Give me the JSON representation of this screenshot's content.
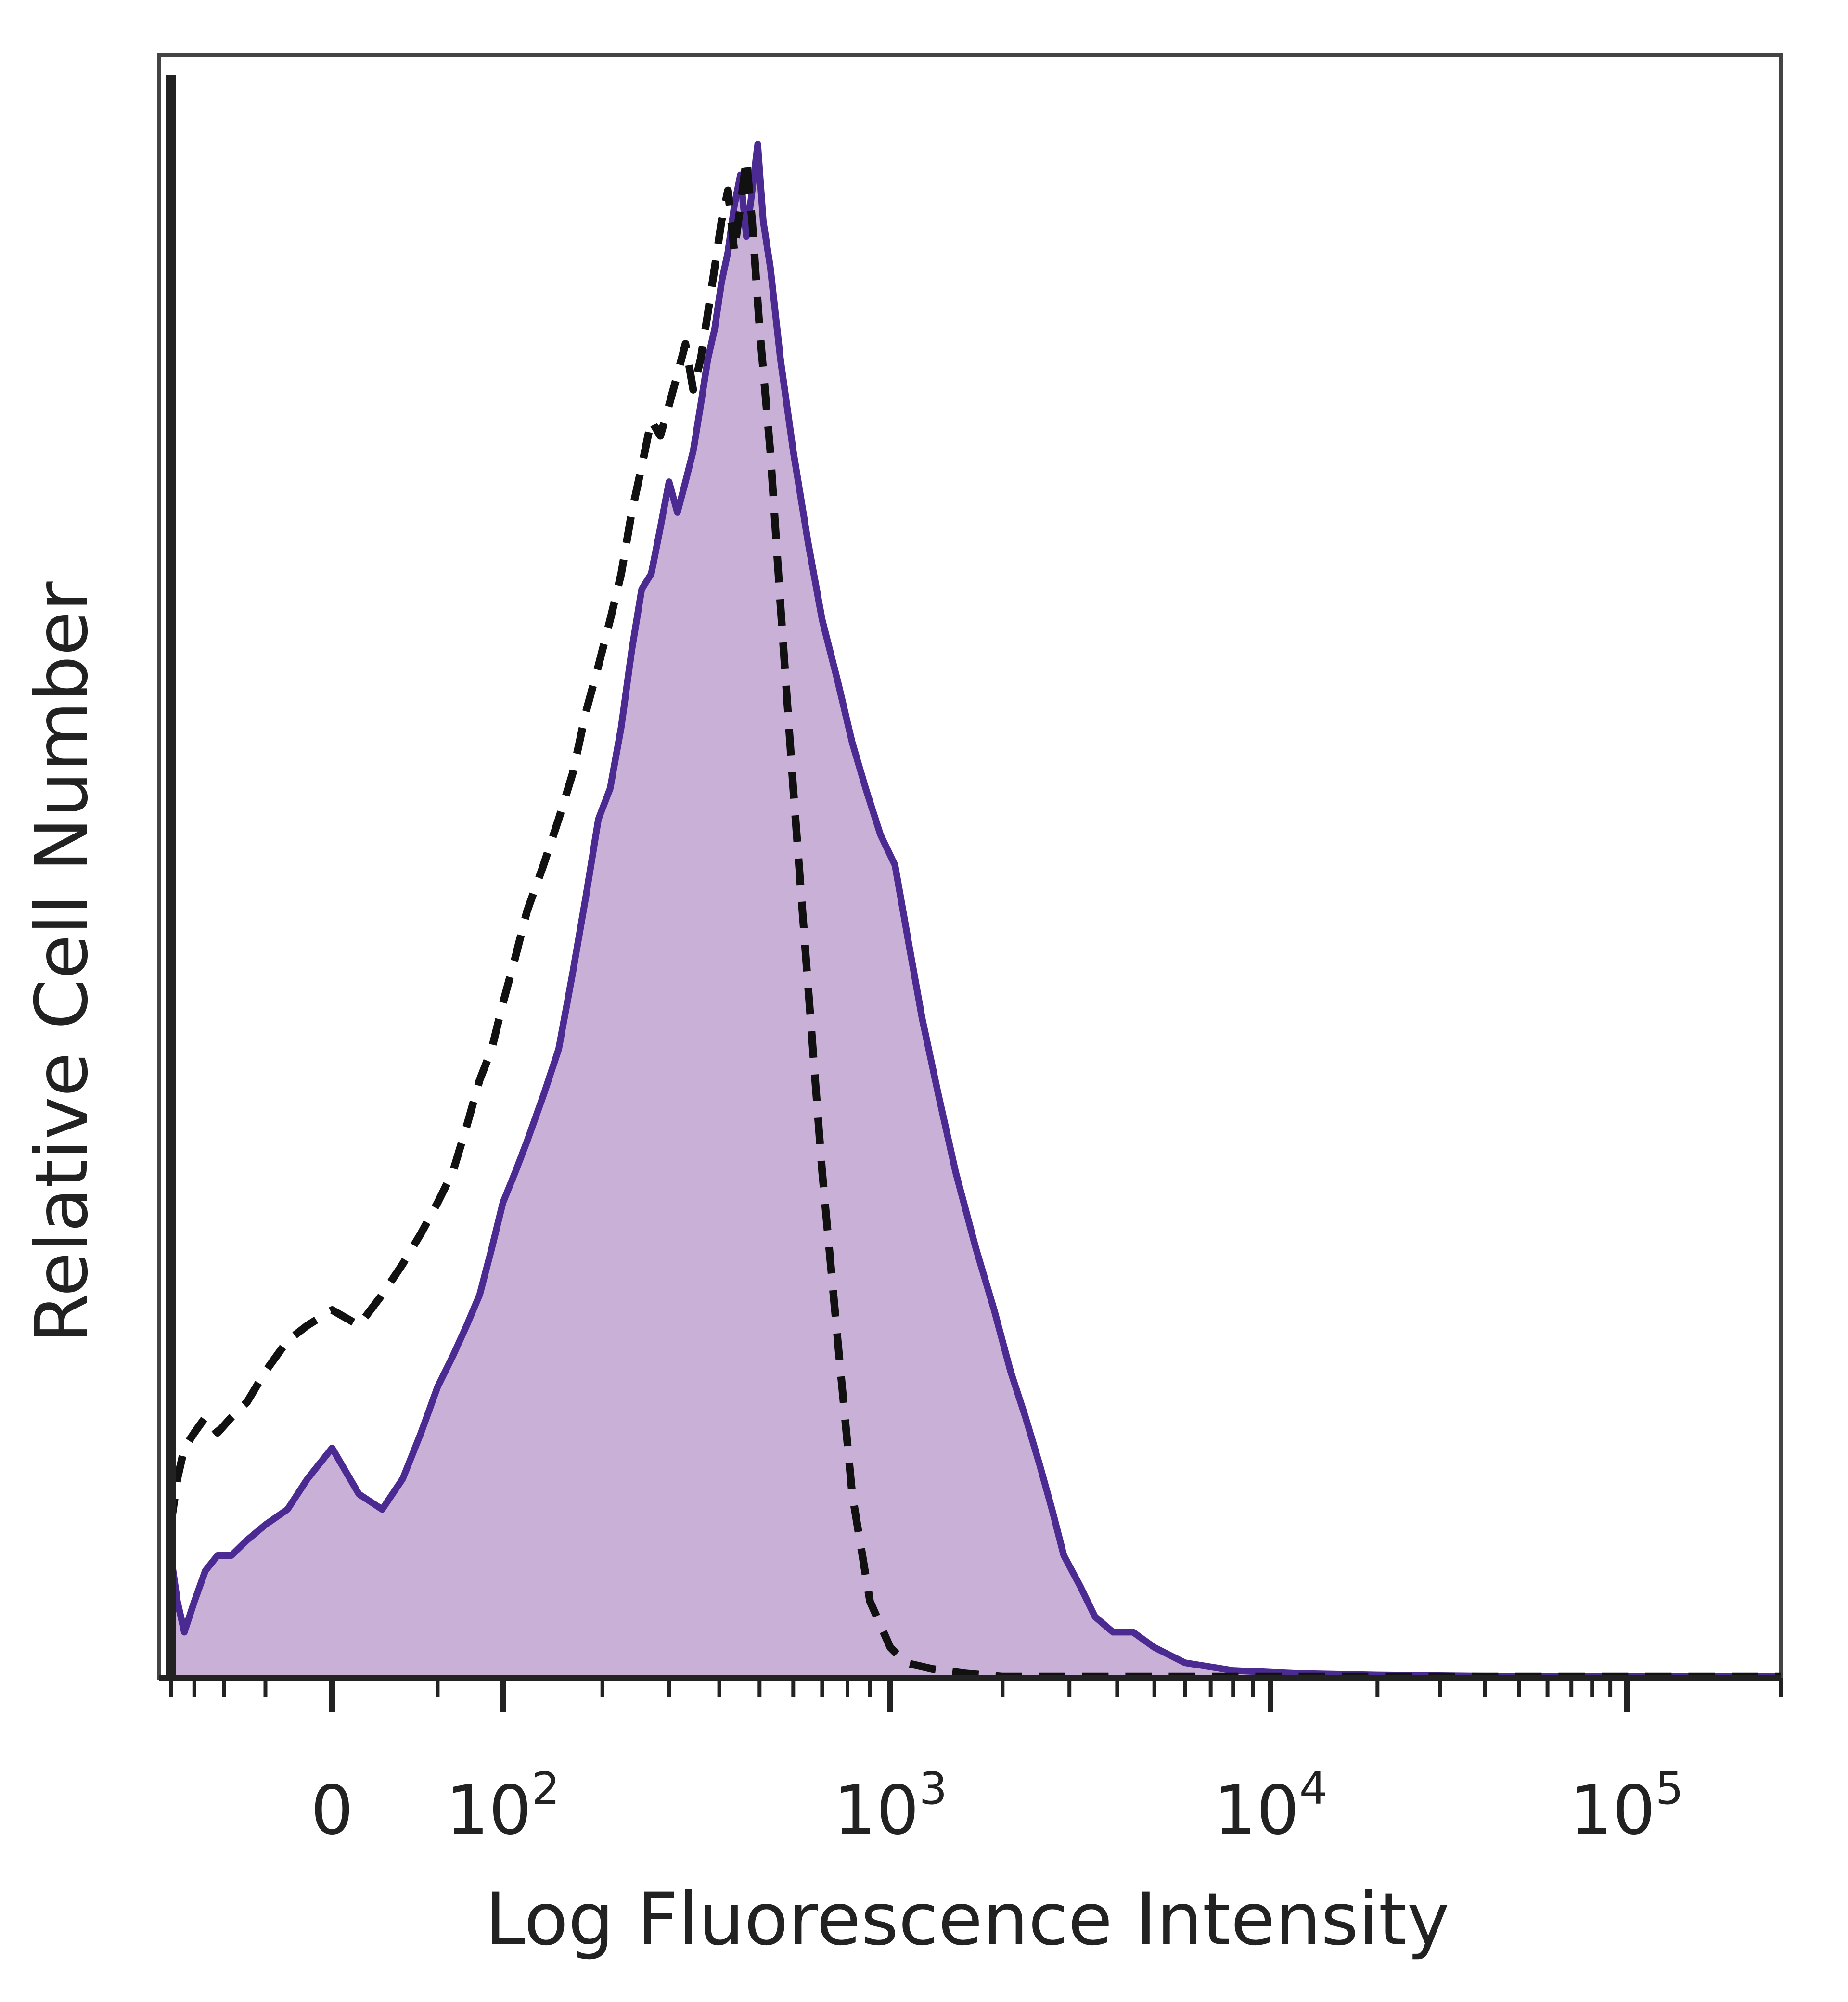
{
  "chart_data": {
    "type": "area",
    "xlabel": "Log Fluorescence Intensity",
    "ylabel": "Relative Cell Number",
    "x_scale": "biexponential (logicle)",
    "x_tick_labels": [
      {
        "base": "0",
        "exp": ""
      },
      {
        "base": "10",
        "exp": "2"
      },
      {
        "base": "10",
        "exp": "3"
      },
      {
        "base": "10",
        "exp": "4"
      },
      {
        "base": "10",
        "exp": "5"
      }
    ],
    "x_major_ticks": [
      0,
      100,
      1000,
      10000,
      100000
    ],
    "ylim": [
      0,
      100
    ],
    "grid": false,
    "legend": "none",
    "colors": {
      "filled_fill": "#c9b0d6",
      "filled_line": "#4b2a91",
      "dashed_line": "#111111",
      "axis": "#222222",
      "frame": "#444444"
    },
    "series": [
      {
        "style": "filled, solid purple outline",
        "x": [
          -200,
          -185,
          -170,
          -150,
          -130,
          -110,
          -90,
          -70,
          -50,
          -30,
          -15,
          0,
          10,
          20,
          30,
          40,
          50,
          60,
          70,
          80,
          90,
          100,
          110,
          120,
          135,
          150,
          165,
          180,
          195,
          210,
          225,
          240,
          255,
          270,
          285,
          300,
          315,
          330,
          345,
          360,
          375,
          390,
          405,
          420,
          435,
          450,
          465,
          480,
          495,
          510,
          530,
          560,
          600,
          650,
          700,
          760,
          820,
          880,
          950,
          1030,
          1120,
          1220,
          1350,
          1500,
          1700,
          1900,
          2100,
          2300,
          2500,
          2700,
          2900,
          3200,
          3500,
          3900,
          4400,
          5000,
          6000,
          8000,
          12000,
          20000,
          50000,
          100000,
          200000
        ],
        "y": [
          8,
          5,
          3,
          5,
          7,
          8,
          8,
          9,
          10,
          11,
          13,
          15,
          12,
          11,
          13,
          16,
          19,
          21,
          23,
          25,
          28,
          31,
          33,
          35,
          38,
          41,
          46,
          51,
          56,
          58,
          62,
          67,
          71,
          72,
          75,
          78,
          76,
          78,
          80,
          83,
          86,
          88,
          91,
          93,
          96,
          98,
          94,
          97,
          100,
          95,
          92,
          86,
          80,
          74,
          69,
          65,
          61,
          58,
          55,
          53,
          48,
          43,
          38,
          33,
          28,
          24,
          20,
          17,
          14,
          11,
          8,
          6,
          4,
          3,
          3,
          2,
          1,
          0.5,
          0.3,
          0.2,
          0.1,
          0.1,
          0.1
        ]
      },
      {
        "style": "dashed black outline",
        "x": [
          -200,
          -185,
          -170,
          -150,
          -130,
          -110,
          -90,
          -70,
          -50,
          -30,
          -15,
          0,
          10,
          20,
          30,
          40,
          50,
          60,
          70,
          80,
          90,
          100,
          110,
          120,
          135,
          150,
          165,
          180,
          195,
          210,
          225,
          240,
          255,
          270,
          285,
          300,
          315,
          330,
          345,
          360,
          375,
          390,
          405,
          420,
          435,
          450,
          465,
          480,
          500,
          530,
          560,
          600,
          650,
          700,
          760,
          820,
          900,
          1000,
          1100,
          1300,
          1600,
          2000,
          3000,
          5000,
          10000,
          20000,
          50000,
          100000,
          200000
        ],
        "y": [
          10,
          13,
          15,
          16,
          17,
          16,
          17,
          18,
          20,
          22,
          23,
          24,
          23,
          25,
          27,
          29,
          31,
          33,
          36,
          39,
          41,
          44,
          47,
          50,
          53,
          56,
          59,
          63,
          66,
          69,
          72,
          76,
          79,
          82,
          81,
          83,
          85,
          87,
          84,
          86,
          89,
          92,
          95,
          97,
          93,
          96,
          99,
          95,
          88,
          80,
          70,
          58,
          45,
          33,
          22,
          12,
          5,
          2,
          1,
          0.6,
          0.3,
          0.1,
          0.1,
          0.1,
          0.1,
          0.1,
          0.1,
          0.1,
          0.1
        ]
      }
    ]
  }
}
